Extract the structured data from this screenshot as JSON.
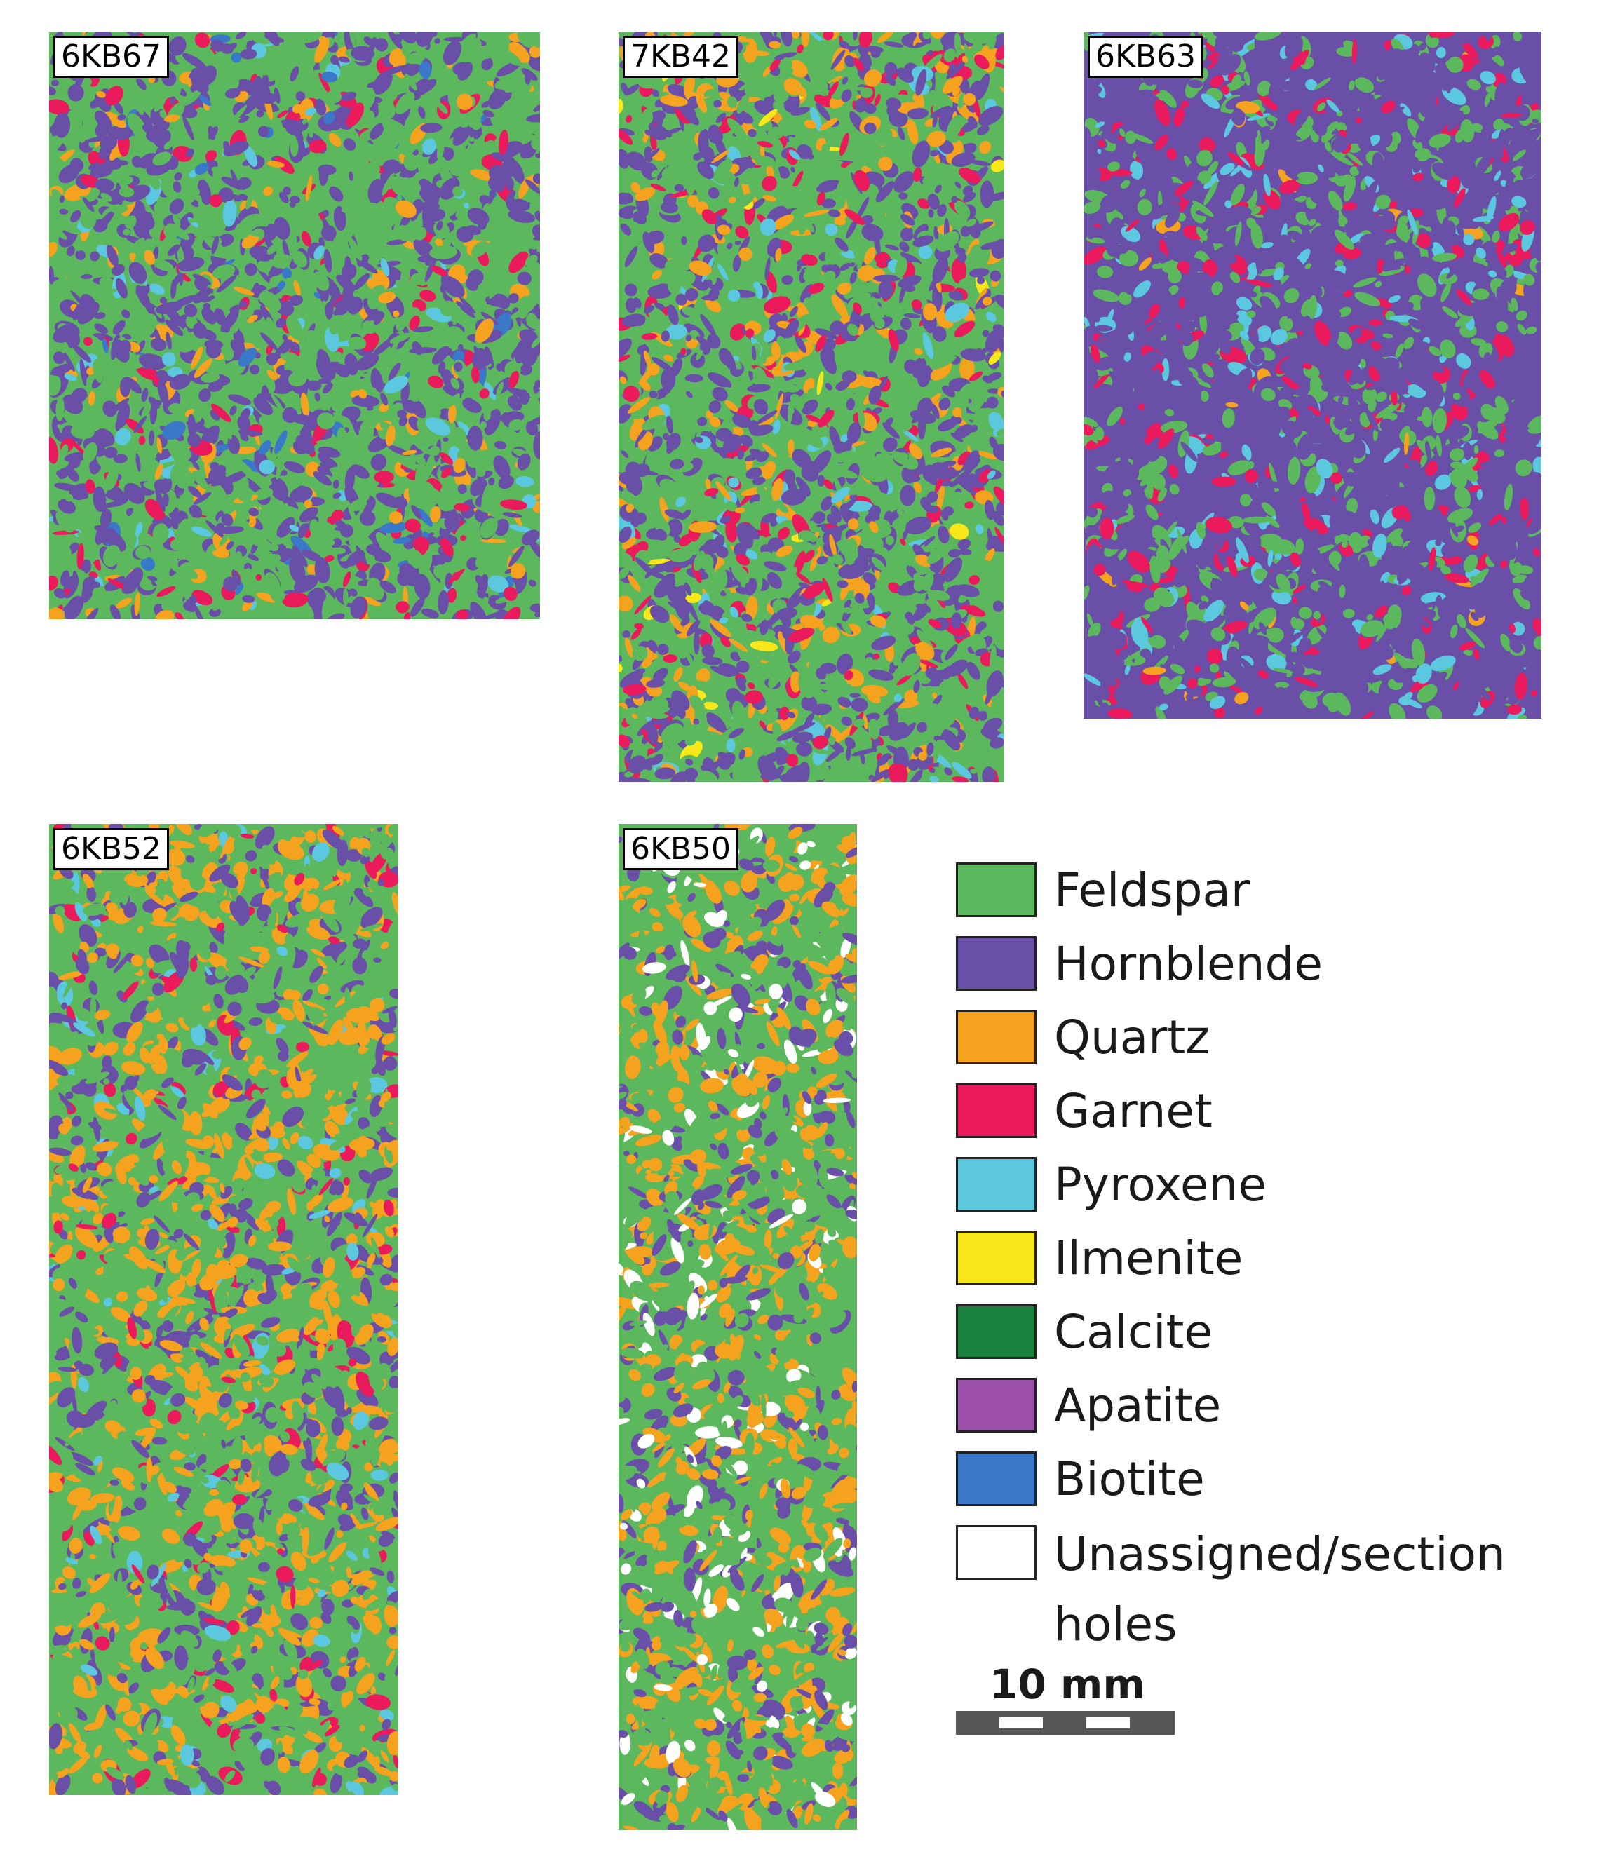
{
  "panels": [
    {
      "id": "p1",
      "label": "6KB67",
      "seed": 11,
      "mix": [
        [
          "#5cb85c",
          38
        ],
        [
          "#6a4fa8",
          44
        ],
        [
          "#f5a21e",
          7
        ],
        [
          "#ea1a5c",
          6
        ],
        [
          "#3a78c9",
          3
        ],
        [
          "#5bc8df",
          2
        ]
      ]
    },
    {
      "id": "p2",
      "label": "7KB42",
      "seed": 23,
      "mix": [
        [
          "#5cb85c",
          30
        ],
        [
          "#6a4fa8",
          40
        ],
        [
          "#f5a21e",
          14
        ],
        [
          "#ea1a5c",
          10
        ],
        [
          "#5bc8df",
          4
        ],
        [
          "#f8e81a",
          1
        ]
      ]
    },
    {
      "id": "p3",
      "label": "6KB63",
      "seed": 37,
      "mix": [
        [
          "#6a4fa8",
          58
        ],
        [
          "#5cb85c",
          24
        ],
        [
          "#ea1a5c",
          10
        ],
        [
          "#5bc8df",
          7
        ],
        [
          "#f5a21e",
          1
        ]
      ]
    },
    {
      "id": "p4",
      "label": "6KB52",
      "seed": 41,
      "mix": [
        [
          "#5cb85c",
          40
        ],
        [
          "#f5a21e",
          30
        ],
        [
          "#6a4fa8",
          22
        ],
        [
          "#ea1a5c",
          4
        ],
        [
          "#5bc8df",
          4
        ]
      ]
    },
    {
      "id": "p5",
      "label": "6KB50",
      "seed": 53,
      "mix": [
        [
          "#5cb85c",
          40
        ],
        [
          "#f5a21e",
          30
        ],
        [
          "#6a4fa8",
          20
        ],
        [
          "#ffffff",
          10
        ]
      ]
    }
  ],
  "legend": [
    {
      "name": "Feldspar",
      "color": "#5cb85c"
    },
    {
      "name": "Hornblende",
      "color": "#6a4fa8"
    },
    {
      "name": "Quartz",
      "color": "#f5a21e"
    },
    {
      "name": "Garnet",
      "color": "#ea1a5c"
    },
    {
      "name": "Pyroxene",
      "color": "#5bc8df"
    },
    {
      "name": "Ilmenite",
      "color": "#f8e81a"
    },
    {
      "name": "Calcite",
      "color": "#1a8040"
    },
    {
      "name": "Apatite",
      "color": "#9b4fa8"
    },
    {
      "name": "Biotite",
      "color": "#3a78c9"
    },
    {
      "name": "Unassigned/section holes",
      "color": "#ffffff"
    }
  ],
  "scale": {
    "label": "10 mm"
  }
}
